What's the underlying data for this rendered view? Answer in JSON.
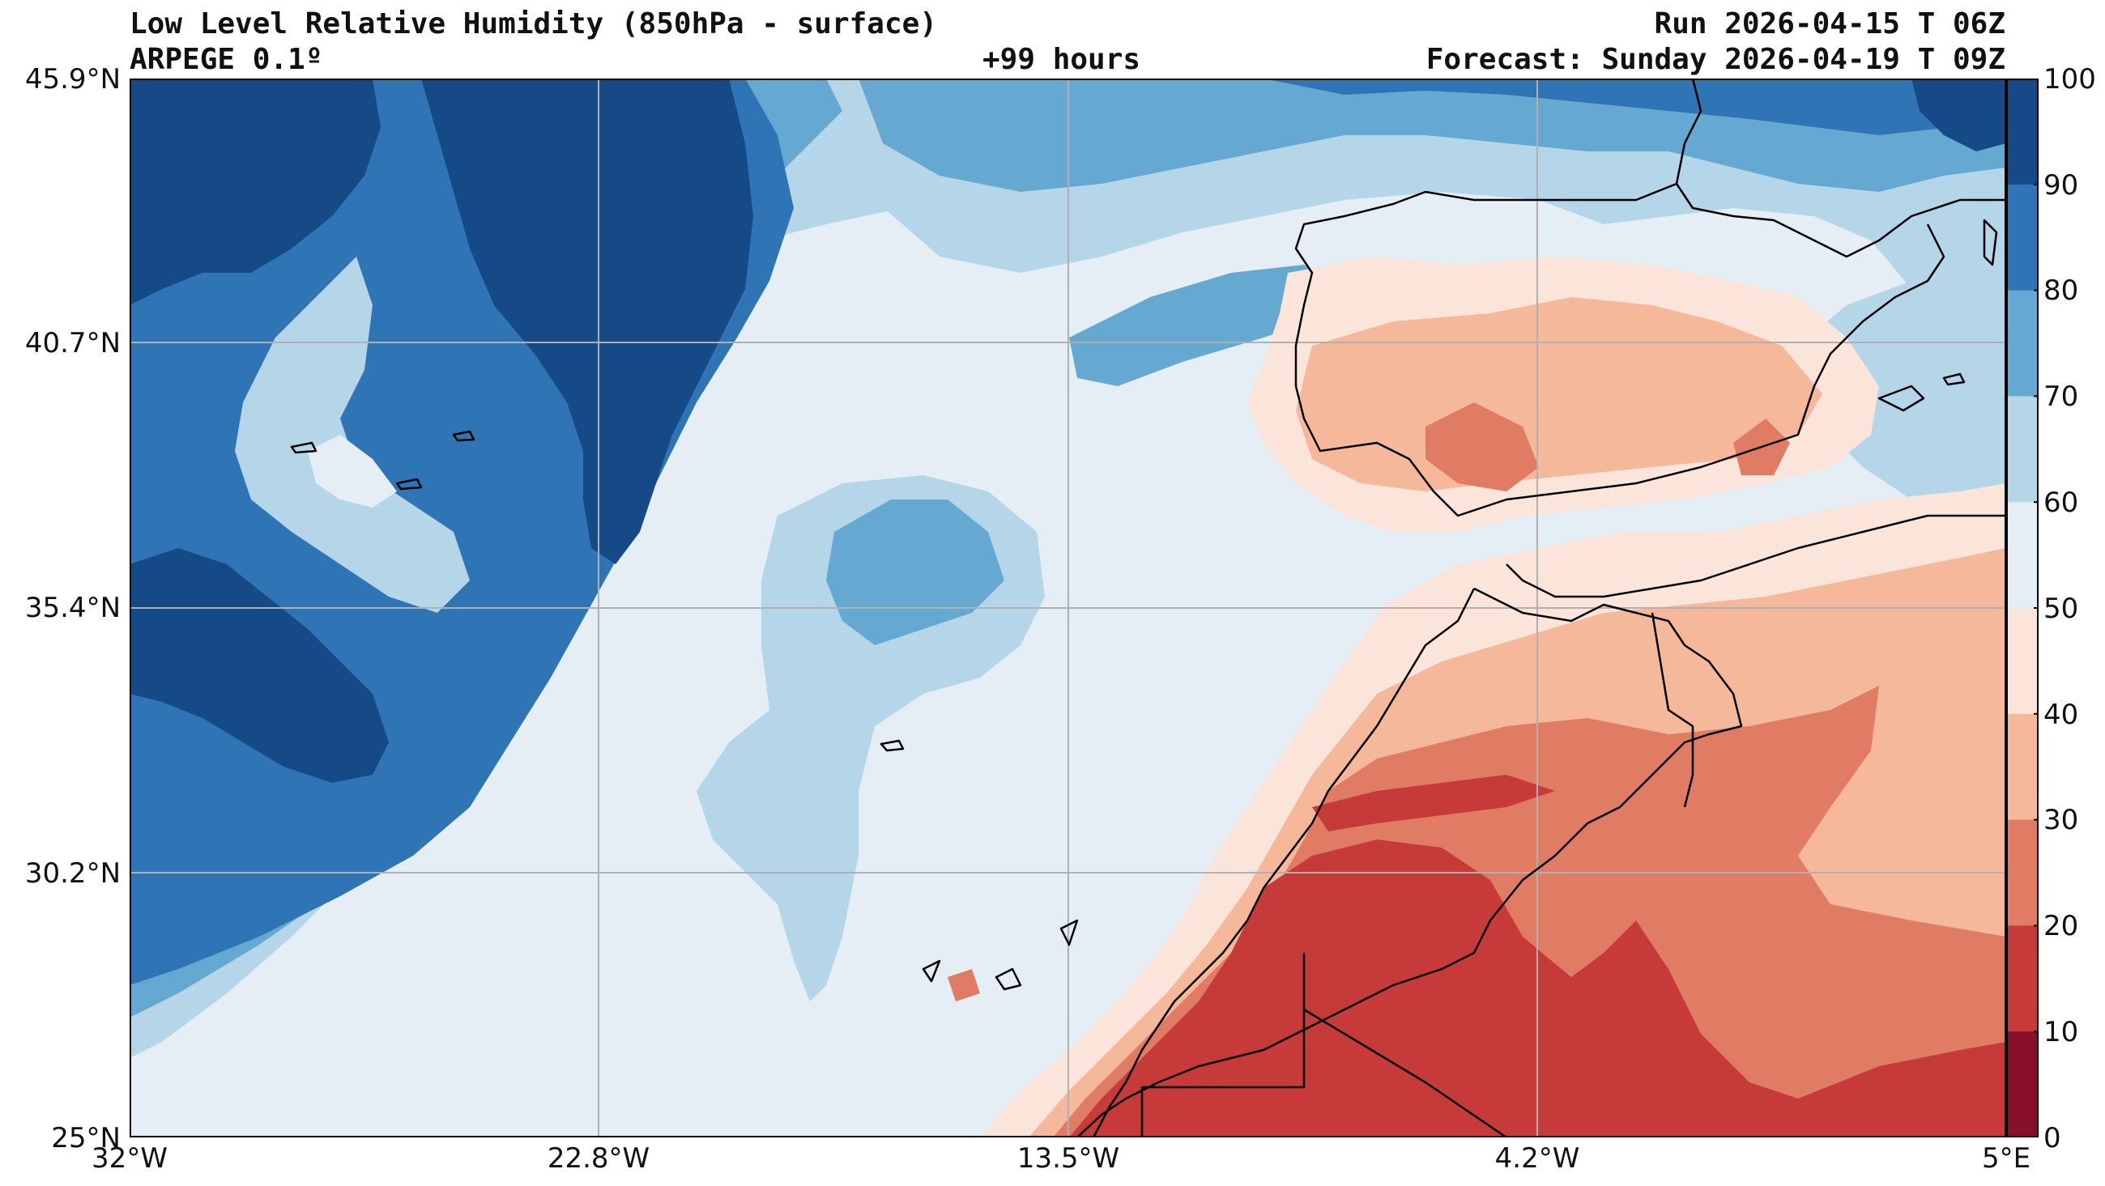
{
  "header": {
    "title": "Low Level Relative Humidity (850hPa - surface)",
    "model": "ARPEGE 0.1º",
    "lead": "+99 hours",
    "run": "Run 2026-04-15 T 06Z",
    "forecast": "Forecast: Sunday 2026-04-19 T 09Z"
  },
  "axes": {
    "lat_labels": [
      "45.9°N",
      "40.7°N",
      "35.4°N",
      "30.2°N",
      "25°N"
    ],
    "lon_labels": [
      "32°W",
      "22.8°W",
      "13.5°W",
      "4.2°W",
      "5°E"
    ]
  },
  "colorbar": {
    "levels": [
      "100",
      "90",
      "80",
      "70",
      "60",
      "50",
      "40",
      "30",
      "20",
      "10",
      "0"
    ],
    "colors_top_to_bottom": [
      "#154a87",
      "#2f74b5",
      "#65a8d1",
      "#b5d5e8",
      "#e5eef4",
      "#fbe4d9",
      "#f5b89b",
      "#e07c64",
      "#c63a3a",
      "#87102a"
    ]
  },
  "map": {
    "region": "Eastern North Atlantic, Iberia, Morocco, Canary Islands",
    "palette": {
      "rh_90_100": "#154a87",
      "rh_80_90": "#2f74b5",
      "rh_70_80": "#65a8d1",
      "rh_60_70": "#b5d5e8",
      "rh_50_60": "#e5eef4",
      "rh_40_50": "#fbe4d9",
      "rh_30_40": "#f5b89b",
      "rh_20_30": "#e07c64",
      "rh_10_20": "#c63a3a",
      "rh_0_10": "#87102a",
      "gridline": "#b0b0b0",
      "coastline": "#000000"
    }
  }
}
